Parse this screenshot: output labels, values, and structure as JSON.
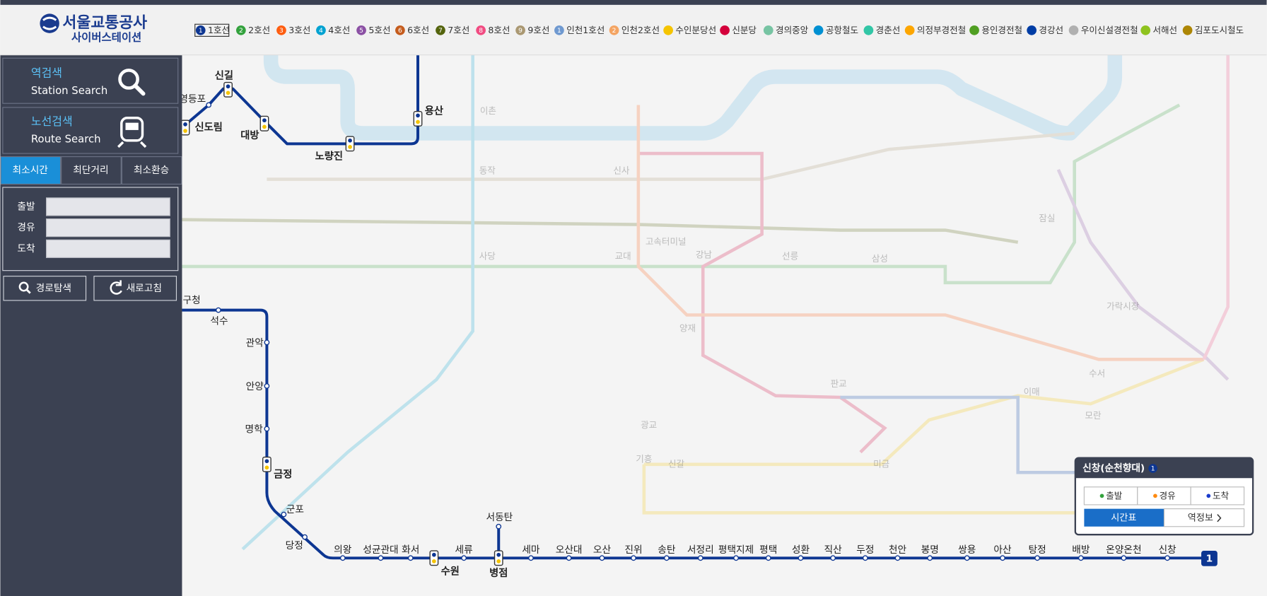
{
  "header": {
    "logo_title": "서울교통공사",
    "logo_subtitle": "사이버스테이션",
    "lines": [
      {
        "badge": "1",
        "name": "1호선",
        "color": "#0d3692"
      },
      {
        "badge": "2",
        "name": "2호선",
        "color": "#33a23d"
      },
      {
        "badge": "3",
        "name": "3호선",
        "color": "#fe5d10"
      },
      {
        "badge": "4",
        "name": "4호선",
        "color": "#00a2d1"
      },
      {
        "badge": "5",
        "name": "5호선",
        "color": "#8b50a4"
      },
      {
        "badge": "6",
        "name": "6호선",
        "color": "#c55c1d"
      },
      {
        "badge": "7",
        "name": "7호선",
        "color": "#54640d"
      },
      {
        "badge": "8",
        "name": "8호선",
        "color": "#f14c82"
      },
      {
        "badge": "9",
        "name": "9호선",
        "color": "#aa9872"
      },
      {
        "badge": "1",
        "name": "인천1호선",
        "color": "#6f99d0"
      },
      {
        "badge": "2",
        "name": "인천2호선",
        "color": "#f4a462"
      },
      {
        "name": "수인분당선",
        "color": "#f5c400"
      },
      {
        "name": "신분당",
        "color": "#d4003b"
      },
      {
        "name": "경의중앙",
        "color": "#77c4a3"
      },
      {
        "name": "공항철도",
        "color": "#0090d2"
      },
      {
        "name": "경춘선",
        "color": "#32c6a6"
      },
      {
        "name": "의정부경전철",
        "color": "#fda600"
      },
      {
        "name": "용인경전철",
        "color": "#509f22"
      },
      {
        "name": "경강선",
        "color": "#003da5"
      },
      {
        "name": "우이신설경전철",
        "color": "#b0b0b0"
      },
      {
        "name": "서해선",
        "color": "#8fc31f"
      },
      {
        "name": "김포도시철도",
        "color": "#ad8605"
      }
    ]
  },
  "sidebar": {
    "station_search": {
      "title": "역검색",
      "subtitle": "Station Search"
    },
    "route_search": {
      "title": "노선검색",
      "subtitle": "Route Search"
    },
    "tabs": [
      "최소시간",
      "최단거리",
      "최소환승"
    ],
    "fields": [
      "출발",
      "경유",
      "도착"
    ],
    "buttons": [
      "경로탐색",
      "새로고침"
    ]
  },
  "map": {
    "line_badge": "1",
    "stations": [
      "영등포",
      "신길",
      "신도림",
      "대방",
      "노량진",
      "용산",
      "금천구청",
      "석수",
      "관악",
      "안양",
      "명학",
      "금정",
      "군포",
      "당정",
      "의왕",
      "성균관대",
      "화서",
      "수원",
      "세류",
      "서동탄",
      "병점",
      "세마",
      "오산대",
      "오산",
      "진위",
      "송탄",
      "서정리",
      "평택지제",
      "평택",
      "성환",
      "직산",
      "두정",
      "천안",
      "봉명",
      "쌍용",
      "아산",
      "탕정",
      "배방",
      "온양온천",
      "신창"
    ],
    "background_labels": [
      "이촌",
      "동작",
      "사당",
      "신사",
      "교대",
      "고속터미널",
      "강남",
      "양재",
      "선릉",
      "삼성",
      "잠실",
      "가락시장",
      "수서",
      "판교",
      "이매",
      "모란",
      "기흥",
      "신갈",
      "미금",
      "광교"
    ]
  },
  "popup": {
    "station": "신창(순천향대)",
    "badge": "1",
    "options": [
      "출발",
      "경유",
      "도착"
    ],
    "buttons": [
      "시간표",
      "역정보"
    ]
  }
}
